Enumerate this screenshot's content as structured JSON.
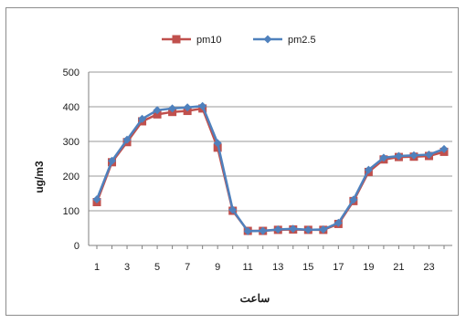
{
  "chart_data": {
    "type": "line",
    "x": [
      1,
      2,
      3,
      4,
      5,
      6,
      7,
      8,
      9,
      10,
      11,
      12,
      13,
      14,
      15,
      16,
      17,
      18,
      19,
      20,
      21,
      22,
      23,
      24
    ],
    "x_ticks": [
      "1",
      "3",
      "5",
      "7",
      "9",
      "11",
      "13",
      "15",
      "17",
      "19",
      "21",
      "23"
    ],
    "y_ticks": [
      "0",
      "100",
      "200",
      "300",
      "400",
      "500"
    ],
    "ylim": [
      0,
      500
    ],
    "xlabel": "ساعت",
    "ylabel": "ug/m3",
    "grid": "horizontal",
    "legend_position": "top",
    "series": [
      {
        "name": "pm10",
        "color": "#c0504d",
        "marker": "square",
        "values": [
          125,
          240,
          298,
          358,
          378,
          385,
          388,
          395,
          282,
          100,
          42,
          42,
          45,
          46,
          45,
          45,
          62,
          128,
          212,
          248,
          255,
          256,
          258,
          270
        ]
      },
      {
        "name": "pm2.5",
        "color": "#4f81bd",
        "marker": "diamond",
        "values": [
          133,
          244,
          305,
          365,
          390,
          395,
          398,
          402,
          295,
          103,
          41,
          42,
          46,
          48,
          45,
          46,
          65,
          132,
          218,
          253,
          258,
          260,
          262,
          278
        ]
      }
    ]
  }
}
